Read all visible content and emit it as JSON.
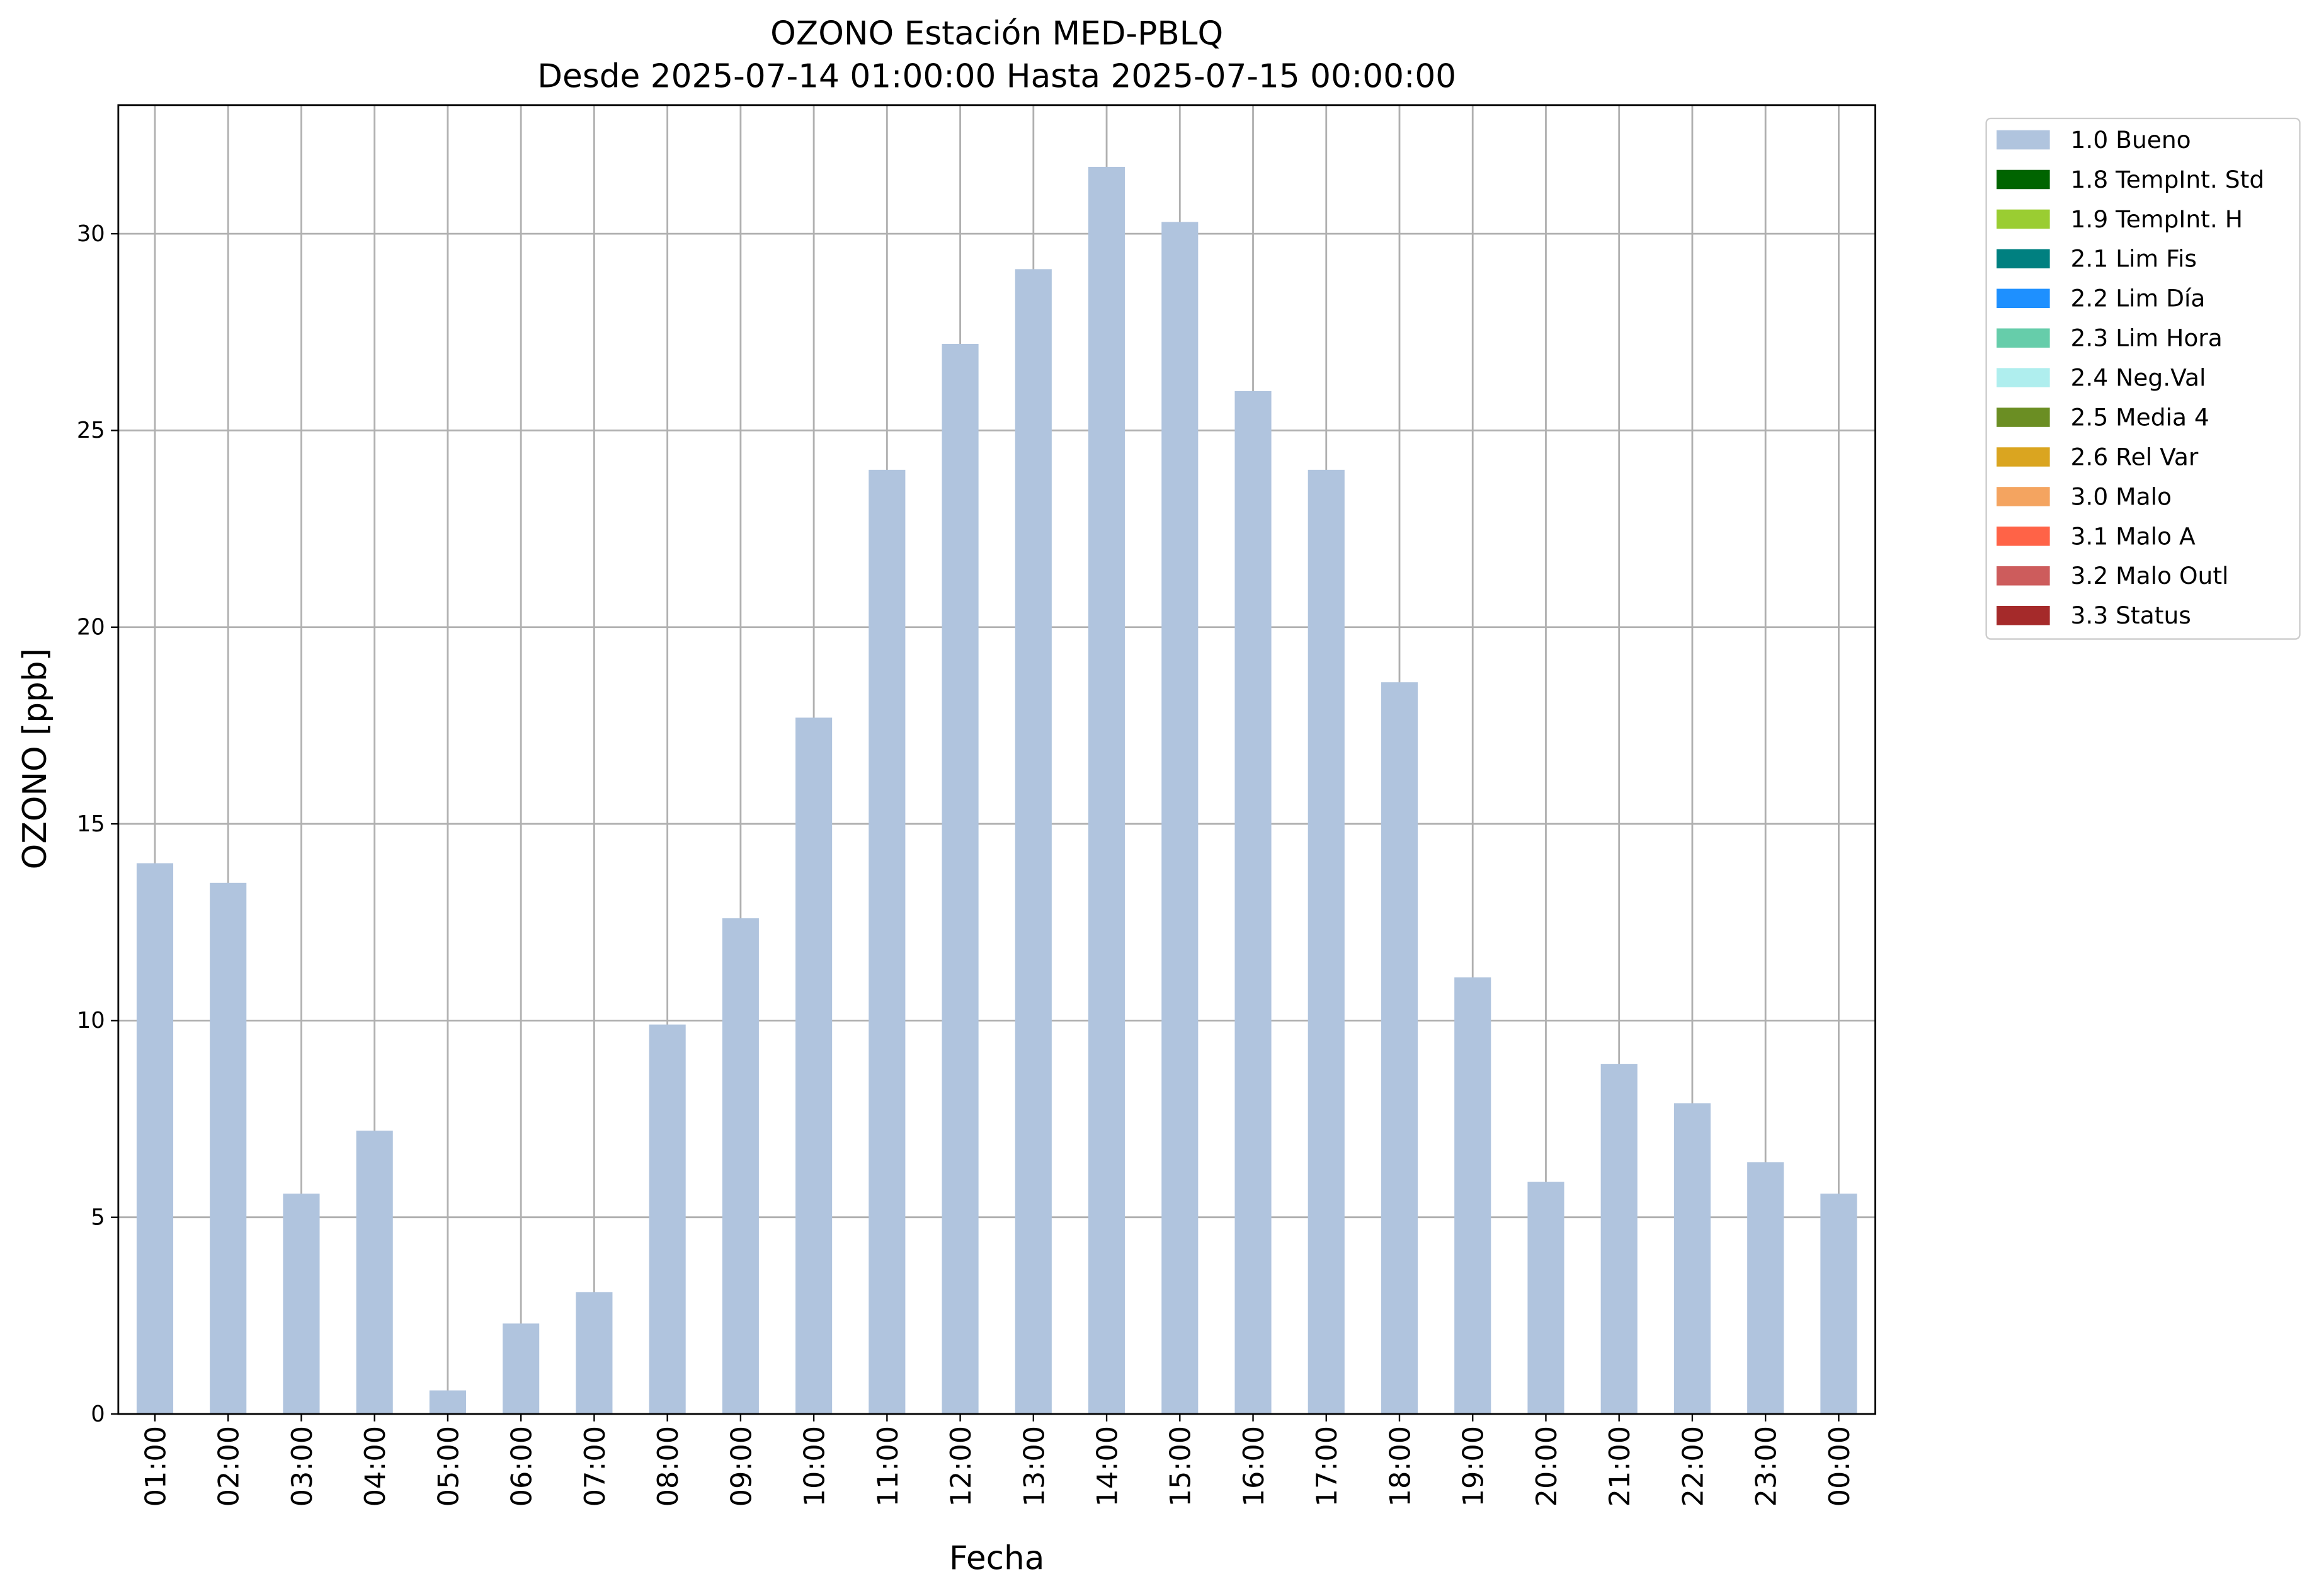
{
  "chart_data": {
    "type": "bar",
    "stacked": true,
    "title": "OZONO Estación MED-PBLQ",
    "subtitle": "Desde 2025-07-14 01:00:00 Hasta 2025-07-15 00:00:00",
    "xlabel": "Fecha",
    "ylabel": "OZONO [ppb]",
    "categories": [
      "01:00",
      "02:00",
      "03:00",
      "04:00",
      "05:00",
      "06:00",
      "07:00",
      "08:00",
      "09:00",
      "10:00",
      "11:00",
      "12:00",
      "13:00",
      "14:00",
      "15:00",
      "16:00",
      "17:00",
      "18:00",
      "19:00",
      "20:00",
      "21:00",
      "22:00",
      "23:00",
      "00:00"
    ],
    "series": [
      {
        "name": "1.0 Bueno",
        "color": "#b0c4de",
        "values": [
          14.0,
          13.5,
          5.6,
          7.2,
          0.6,
          2.3,
          3.1,
          9.9,
          12.6,
          17.7,
          24.0,
          27.2,
          29.1,
          31.7,
          30.3,
          26.0,
          24.0,
          18.6,
          11.1,
          5.9,
          8.9,
          7.9,
          6.4,
          5.6
        ]
      },
      {
        "name": "1.8 TempInt. Std",
        "color": "#006400",
        "values": [
          null,
          null,
          null,
          null,
          null,
          null,
          null,
          null,
          null,
          null,
          null,
          null,
          null,
          null,
          null,
          null,
          null,
          null,
          null,
          null,
          null,
          null,
          null,
          null
        ]
      },
      {
        "name": "1.9 TempInt. H",
        "color": "#9acd32",
        "values": [
          null,
          null,
          null,
          null,
          null,
          null,
          null,
          null,
          null,
          null,
          null,
          null,
          null,
          null,
          null,
          null,
          null,
          null,
          null,
          null,
          null,
          null,
          null,
          null
        ]
      },
      {
        "name": "2.1 Lim Fis",
        "color": "#008080",
        "values": [
          null,
          null,
          null,
          null,
          null,
          null,
          null,
          null,
          null,
          null,
          null,
          null,
          null,
          null,
          null,
          null,
          null,
          null,
          null,
          null,
          null,
          null,
          null,
          null
        ]
      },
      {
        "name": "2.2 Lim Día",
        "color": "#1e90ff",
        "values": [
          null,
          null,
          null,
          null,
          null,
          null,
          null,
          null,
          null,
          null,
          null,
          null,
          null,
          null,
          null,
          null,
          null,
          null,
          null,
          null,
          null,
          null,
          null,
          null
        ]
      },
      {
        "name": "2.3 Lim Hora",
        "color": "#66cdaa",
        "values": [
          null,
          null,
          null,
          null,
          null,
          null,
          null,
          null,
          null,
          null,
          null,
          null,
          null,
          null,
          null,
          null,
          null,
          null,
          null,
          null,
          null,
          null,
          null,
          null
        ]
      },
      {
        "name": "2.4 Neg.Val",
        "color": "#afeeee",
        "values": [
          null,
          null,
          null,
          null,
          null,
          null,
          null,
          null,
          null,
          null,
          null,
          null,
          null,
          null,
          null,
          null,
          null,
          null,
          null,
          null,
          null,
          null,
          null,
          null
        ]
      },
      {
        "name": "2.5 Media 4",
        "color": "#6b8e23",
        "values": [
          null,
          null,
          null,
          null,
          null,
          null,
          null,
          null,
          null,
          null,
          null,
          null,
          null,
          null,
          null,
          null,
          null,
          null,
          null,
          null,
          null,
          null,
          null,
          null
        ]
      },
      {
        "name": "2.6 Rel Var",
        "color": "#daa520",
        "values": [
          null,
          null,
          null,
          null,
          null,
          null,
          null,
          null,
          null,
          null,
          null,
          null,
          null,
          null,
          null,
          null,
          null,
          null,
          null,
          null,
          null,
          null,
          null,
          null
        ]
      },
      {
        "name": "3.0 Malo",
        "color": "#f4a460",
        "values": [
          null,
          null,
          null,
          null,
          null,
          null,
          null,
          null,
          null,
          null,
          null,
          null,
          null,
          null,
          null,
          null,
          null,
          null,
          null,
          null,
          null,
          null,
          null,
          null
        ]
      },
      {
        "name": "3.1 Malo A",
        "color": "#ff6347",
        "values": [
          null,
          null,
          null,
          null,
          null,
          null,
          null,
          null,
          null,
          null,
          null,
          null,
          null,
          null,
          null,
          null,
          null,
          null,
          null,
          null,
          null,
          null,
          null,
          null
        ]
      },
      {
        "name": "3.2 Malo Outl",
        "color": "#cd5c5c",
        "values": [
          null,
          null,
          null,
          null,
          null,
          null,
          null,
          null,
          null,
          null,
          null,
          null,
          null,
          null,
          null,
          null,
          null,
          null,
          null,
          null,
          null,
          null,
          null,
          null
        ]
      },
      {
        "name": "3.3 Status",
        "color": "#a52a2a",
        "values": [
          null,
          null,
          null,
          null,
          null,
          null,
          null,
          null,
          null,
          null,
          null,
          null,
          null,
          null,
          null,
          null,
          null,
          null,
          null,
          null,
          null,
          null,
          null,
          null
        ]
      }
    ],
    "ylim": [
      0,
      33.27
    ],
    "yticks": [
      0,
      5,
      10,
      15,
      20,
      25,
      30
    ],
    "grid": true,
    "legend": "outside upper right"
  }
}
